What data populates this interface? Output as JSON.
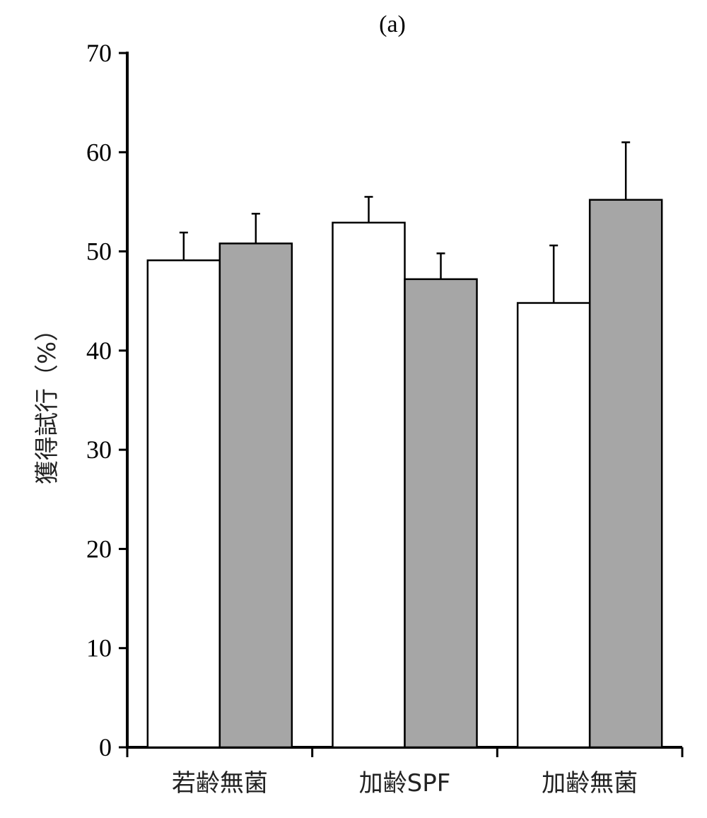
{
  "chart_data": {
    "type": "bar",
    "title": "(a)",
    "xlabel": "",
    "ylabel": "獲得試行（%）",
    "ylim": [
      0,
      70
    ],
    "yticks": [
      0,
      10,
      20,
      30,
      40,
      50,
      60,
      70
    ],
    "categories": [
      "若齢無菌",
      "加齢SPF",
      "加齢無菌"
    ],
    "grid": false,
    "legend": "none",
    "series": [
      {
        "color": "#ffffff",
        "values": [
          49.1,
          52.9,
          44.8
        ],
        "errors": [
          2.8,
          2.6,
          5.8
        ]
      },
      {
        "color": "#a6a6a6",
        "values": [
          50.8,
          47.2,
          55.2
        ],
        "errors": [
          3.0,
          2.6,
          5.8
        ]
      }
    ]
  }
}
